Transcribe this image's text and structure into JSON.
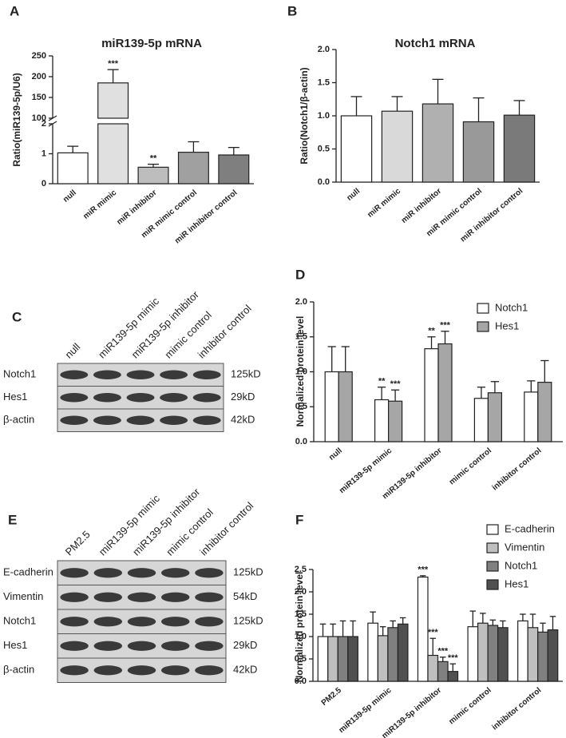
{
  "chart_data": [
    {
      "type": "bar",
      "panel": "A",
      "title": "miR139-5p mRNA",
      "ylabel": "Ratio(miR139-5p/U6)",
      "categories": [
        "null",
        "miR mimic",
        "miR inhibitor",
        "miR mimic control",
        "miR inhibitor control"
      ],
      "values": [
        1.03,
        185,
        0.55,
        1.05,
        0.96
      ],
      "errors": [
        0.22,
        32,
        0.1,
        0.35,
        0.25
      ],
      "significance": [
        null,
        "***",
        "**",
        null,
        null
      ],
      "colors": [
        "#ffffff",
        "#e0e0e0",
        "#bdbdbd",
        "#a0a0a0",
        "#7f7f7f"
      ],
      "broken_axis": {
        "lower": {
          "ylim": [
            0,
            2
          ],
          "yticks": [
            0,
            1,
            2
          ]
        },
        "upper": {
          "ylim": [
            100,
            250
          ],
          "yticks": [
            100,
            150,
            200,
            250
          ]
        }
      }
    },
    {
      "type": "bar",
      "panel": "B",
      "title": "Notch1 mRNA",
      "ylabel": "Ratio(Notch1/β-actin)",
      "categories": [
        "null",
        "miR mimic",
        "miR inhibitor",
        "miR mimic control",
        "miR inhibitor control"
      ],
      "values": [
        1.0,
        1.07,
        1.18,
        0.91,
        1.01
      ],
      "errors": [
        0.29,
        0.22,
        0.37,
        0.36,
        0.22
      ],
      "colors": [
        "#ffffff",
        "#d9d9d9",
        "#b0b0b0",
        "#999999",
        "#7a7a7a"
      ],
      "ylim": [
        0,
        2
      ],
      "yticks": [
        {
          "value": 0,
          "label": "0.0"
        },
        0.5,
        {
          "value": 1,
          "label": "1.0"
        },
        1.5,
        {
          "value": 2,
          "label": "2.0"
        }
      ]
    },
    {
      "type": "bar",
      "panel": "D",
      "ylabel": "Normalized protein level",
      "categories": [
        "null",
        "miR139-5p mimic",
        "miR139-5p inhibitor",
        "mimic control",
        "inhibitor control"
      ],
      "series": [
        {
          "name": "Notch1",
          "color": "#ffffff",
          "values": [
            1.0,
            0.6,
            1.33,
            0.62,
            0.71
          ],
          "errors": [
            0.36,
            0.18,
            0.17,
            0.16,
            0.16
          ],
          "significance": [
            null,
            "**",
            "**",
            null,
            null
          ]
        },
        {
          "name": "Hes1",
          "color": "#a6a6a6",
          "values": [
            1.0,
            0.58,
            1.4,
            0.7,
            0.85
          ],
          "errors": [
            0.36,
            0.16,
            0.18,
            0.16,
            0.31
          ],
          "significance": [
            null,
            "***",
            "***",
            null,
            null
          ]
        }
      ],
      "ylim": [
        0,
        2
      ],
      "yticks": [
        {
          "value": 0,
          "label": "0.0"
        },
        0.5,
        {
          "value": 1,
          "label": "1.0"
        },
        1.5,
        {
          "value": 2,
          "label": "2.0"
        }
      ]
    },
    {
      "type": "bar",
      "panel": "F",
      "ylabel": "Normalized protein level",
      "categories": [
        "PM2.5",
        "miR139-5p mimic",
        "miR139-5p inhibitor",
        "mimic control",
        "inhibitor control"
      ],
      "series": [
        {
          "name": "E-cadherin",
          "color": "#ffffff",
          "values": [
            1.0,
            1.3,
            2.33,
            1.22,
            1.35
          ],
          "errors": [
            0.28,
            0.25,
            0.03,
            0.35,
            0.15
          ],
          "significance": [
            null,
            null,
            "***",
            null,
            null
          ]
        },
        {
          "name": "Vimentin",
          "color": "#bfbfbf",
          "values": [
            1.0,
            1.02,
            0.58,
            1.3,
            1.2
          ],
          "errors": [
            0.28,
            0.2,
            0.38,
            0.22,
            0.3
          ],
          "significance": [
            null,
            null,
            "***",
            null,
            null
          ]
        },
        {
          "name": "Notch1",
          "color": "#808080",
          "values": [
            1.0,
            1.2,
            0.44,
            1.25,
            1.1
          ],
          "errors": [
            0.35,
            0.15,
            0.1,
            0.12,
            0.2
          ],
          "significance": [
            null,
            null,
            "***",
            null,
            null
          ]
        },
        {
          "name": "Hes1",
          "color": "#505050",
          "values": [
            1.0,
            1.28,
            0.22,
            1.2,
            1.15
          ],
          "errors": [
            0.35,
            0.14,
            0.17,
            0.15,
            0.3
          ],
          "significance": [
            null,
            null,
            "***",
            null,
            null
          ]
        }
      ],
      "ylim": [
        0,
        2.5
      ],
      "yticks": [
        {
          "value": 0,
          "label": "0.0"
        },
        0.5,
        {
          "value": 1,
          "label": "1.0"
        },
        1.5,
        {
          "value": 2,
          "label": "2.0"
        },
        2.5
      ]
    }
  ],
  "blots": [
    {
      "panel": "C",
      "columns": [
        "null",
        "miR139-5p mimic",
        "miR139-5p inhibitor",
        "mimic control",
        "inhibitor control"
      ],
      "rows": [
        {
          "name": "Notch1",
          "size": "125kD"
        },
        {
          "name": "Hes1",
          "size": "29kD"
        },
        {
          "name": "β-actin",
          "size": "42kD"
        }
      ]
    },
    {
      "panel": "E",
      "columns": [
        "PM2.5",
        "miR139-5p mimic",
        "miR139-5p inhibitor",
        "mimic control",
        "inhibitor control"
      ],
      "rows": [
        {
          "name": "E-cadherin",
          "size": "125kD"
        },
        {
          "name": "Vimentin",
          "size": "54kD"
        },
        {
          "name": "Notch1",
          "size": "125kD"
        },
        {
          "name": "Hes1",
          "size": "29kD"
        },
        {
          "name": "β-actin",
          "size": "42kD"
        }
      ]
    }
  ]
}
